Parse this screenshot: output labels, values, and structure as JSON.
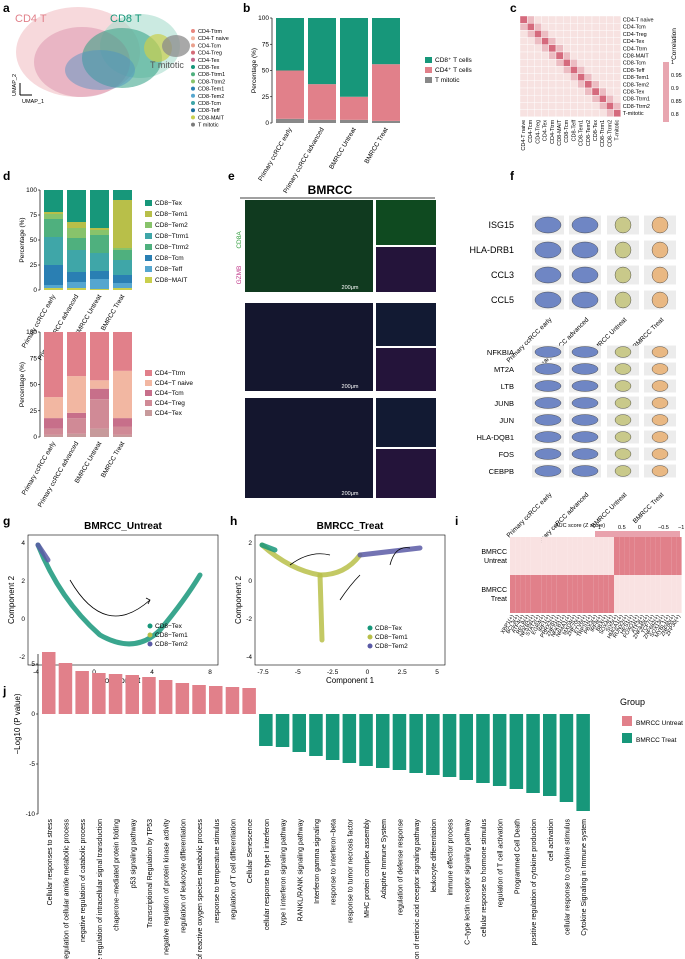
{
  "panel_letters": [
    "a",
    "b",
    "c",
    "d",
    "e",
    "f",
    "g",
    "h",
    "i",
    "j"
  ],
  "panel_a": {
    "cluster_labels": [
      "CD4 T",
      "CD8 T",
      "T mitotic"
    ],
    "axis_labels": [
      "UMAP_1",
      "UMAP_2"
    ],
    "legend": [
      {
        "name": "CD4-Ttrm",
        "color": "#e8877f"
      },
      {
        "name": "CD4-T naive",
        "color": "#f2b7a2"
      },
      {
        "name": "CD4-Tcm",
        "color": "#eaa08d"
      },
      {
        "name": "CD4-Treg",
        "color": "#d46b78"
      },
      {
        "name": "CD4-Tex",
        "color": "#c2688d"
      },
      {
        "name": "CD8-Tex",
        "color": "#17977a"
      },
      {
        "name": "CD8-Ttrm1",
        "color": "#4fb07e"
      },
      {
        "name": "CD8-Ttrm2",
        "color": "#88c36b"
      },
      {
        "name": "CD8-Tem1",
        "color": "#2a7fb3"
      },
      {
        "name": "CD8-Tem2",
        "color": "#55a6cf"
      },
      {
        "name": "CD8-Tcm",
        "color": "#3fa6a8"
      },
      {
        "name": "CD8-Teff",
        "color": "#1c6f9e"
      },
      {
        "name": "CD8-MAIT",
        "color": "#c9cf4d"
      },
      {
        "name": "T mitotic",
        "color": "#7b7b7b"
      }
    ]
  },
  "chart_data": [
    {
      "id": "b",
      "type": "bar",
      "stacked": true,
      "categories": [
        "Primary ccRCC early",
        "Primary ccRCC advanced",
        "BMRCC Untreat",
        "BMRCC Treat"
      ],
      "ylabel": "Percentage (%)",
      "ylim": [
        0,
        100
      ],
      "yticks": [
        0,
        25,
        50,
        75,
        100
      ],
      "series": [
        {
          "name": "T mitotic",
          "color": "#888888",
          "values": [
            4,
            3,
            3,
            2
          ]
        },
        {
          "name": "CD4⁺ T cells",
          "color": "#e1808a",
          "values": [
            46,
            34,
            22,
            54
          ]
        },
        {
          "name": "CD8⁺ T cells",
          "color": "#17977a",
          "values": [
            50,
            63,
            75,
            44
          ]
        }
      ],
      "legend": [
        "CD8⁺ T cells",
        "CD4⁺ T cells",
        "T mitotic"
      ]
    },
    {
      "id": "c",
      "type": "heatmap",
      "rows": [
        "CD4-T naive",
        "CD4-Tcm",
        "CD4-Treg",
        "CD4-Tex",
        "CD4-Ttrm",
        "CD8-MAIT",
        "CD8-Tcm",
        "CD8-Teff",
        "CD8-Tem1",
        "CD8-Tem2",
        "CD8-Tex",
        "CD8-Ttrm1",
        "CD8-Ttrm2",
        "T-mitotic"
      ],
      "legend_title": "Correlation",
      "scale_ticks": [
        "1",
        "0.95",
        "0.9",
        "0.85",
        "0.8"
      ],
      "diagonal": 1.0,
      "off_diagonal_range": [
        0.8,
        0.95
      ]
    },
    {
      "id": "d_top",
      "type": "bar",
      "stacked": true,
      "categories": [
        "Primary ccRCC early",
        "Primary ccRCC advanced",
        "BMRCC Untreat",
        "BMRCC Treat"
      ],
      "ylabel": "Percentage (%)",
      "ylim": [
        0,
        100
      ],
      "yticks": [
        0,
        25,
        50,
        75,
        100
      ],
      "series": [
        {
          "name": "CD8−MAIT",
          "color": "#c9cf4d",
          "values": [
            2,
            2,
            1,
            2
          ]
        },
        {
          "name": "CD8−Teff",
          "color": "#55a6cf",
          "values": [
            3,
            6,
            10,
            5
          ]
        },
        {
          "name": "CD8−Tcm",
          "color": "#2a7fb3",
          "values": [
            20,
            10,
            8,
            8
          ]
        },
        {
          "name": "CD8−Ttrm1",
          "color": "#3fa6a8",
          "values": [
            28,
            22,
            18,
            15
          ]
        },
        {
          "name": "CD8−Ttrm2",
          "color": "#4fb07e",
          "values": [
            18,
            12,
            18,
            10
          ]
        },
        {
          "name": "CD8−Tem2",
          "color": "#88c36b",
          "values": [
            5,
            10,
            5,
            2
          ]
        },
        {
          "name": "CD8−Tem1",
          "color": "#b8bf49",
          "values": [
            2,
            6,
            2,
            48
          ]
        },
        {
          "name": "CD8−Tex",
          "color": "#17977a",
          "values": [
            22,
            32,
            38,
            10
          ]
        }
      ],
      "legend": [
        "CD8−Tex",
        "CD8−Tem1",
        "CD8−Tem2",
        "CD8−Ttrm1",
        "CD8−Ttrm2",
        "CD8−Tcm",
        "CD8−Teff",
        "CD8−MAIT"
      ]
    },
    {
      "id": "d_bottom",
      "type": "bar",
      "stacked": true,
      "categories": [
        "Primary ccRCC early",
        "Primary ccRCC advanced",
        "BMRCC Untreat",
        "BMRCC Treat"
      ],
      "ylabel": "Percentage (%)",
      "ylim": [
        0,
        100
      ],
      "yticks": [
        0,
        25,
        50,
        75,
        100
      ],
      "series": [
        {
          "name": "CD4−Tex",
          "color": "#c79a9b",
          "values": [
            2,
            3,
            8,
            2
          ]
        },
        {
          "name": "CD4−Treg",
          "color": "#d08a96",
          "values": [
            6,
            15,
            28,
            8
          ]
        },
        {
          "name": "CD4−Tcm",
          "color": "#c76f8a",
          "values": [
            10,
            5,
            10,
            8
          ]
        },
        {
          "name": "CD4−T naive",
          "color": "#f2b7a2",
          "values": [
            20,
            35,
            8,
            45
          ]
        },
        {
          "name": "CD4−Ttrm",
          "color": "#e1808a",
          "values": [
            62,
            42,
            46,
            37
          ]
        }
      ],
      "legend": [
        "CD4−Ttrm",
        "CD4−T naive",
        "CD4−Tcm",
        "CD4−Treg",
        "CD4−Tex"
      ]
    },
    {
      "id": "j",
      "type": "bar",
      "ylabel": "−Log10 (P value)",
      "ylim": [
        -10,
        7
      ],
      "yticks": [
        5,
        0,
        -5,
        -10
      ],
      "legend_title": "Group",
      "series": [
        {
          "name": "BMRCC Untreat",
          "color": "#e1808a"
        },
        {
          "name": "BMRCC Treat",
          "color": "#17977a"
        }
      ],
      "categories": [
        "Cellular responses to stress",
        "regulation of cellular amide metabolic process",
        "negative regulation of catabolic process",
        "negative regulation of intracellular signal transduction",
        "chaperone−mediated protein folding",
        "p53 signaling pathway",
        "Transcriptional Regulation by TP53",
        "negative regulation of protein kinase activity",
        "regulation of leukocyte differentiation",
        "regulation of reactive oxygen species metabolic process",
        "response to temperature stimulus",
        "regulation of T cell differentiation",
        "Cellular Senescence",
        "cellular response to type I interferon",
        "type I interferon signaling pathway",
        "RANKL/RANK signaling pathway",
        "Interferon gamma signaling",
        "response to interferon−beta",
        "response to tumor necrosis factor",
        "MHC protein complex assembly",
        "Adaptive Immune System",
        "regulation of defense response",
        "regulation of retinoic acid receptor signaling pathway",
        "leukocyte differentiation",
        "immune effector process",
        "C−type lectin receptor signaling pathway",
        "cellular response to hormone stimulus",
        "regulation of T cell activation",
        "Programmed Cell Death",
        "positive regulation of cytokine production",
        "cell activation",
        "cellular response to cytokine stimulus",
        "Cytokine Signaling in Immune system"
      ],
      "groups": [
        "BMRCC Untreat",
        "BMRCC Untreat",
        "BMRCC Untreat",
        "BMRCC Untreat",
        "BMRCC Untreat",
        "BMRCC Untreat",
        "BMRCC Untreat",
        "BMRCC Untreat",
        "BMRCC Untreat",
        "BMRCC Untreat",
        "BMRCC Untreat",
        "BMRCC Untreat",
        "BMRCC Untreat",
        "BMRCC Treat",
        "BMRCC Treat",
        "BMRCC Treat",
        "BMRCC Treat",
        "BMRCC Treat",
        "BMRCC Treat",
        "BMRCC Treat",
        "BMRCC Treat",
        "BMRCC Treat",
        "BMRCC Treat",
        "BMRCC Treat",
        "BMRCC Treat",
        "BMRCC Treat",
        "BMRCC Treat",
        "BMRCC Treat",
        "BMRCC Treat",
        "BMRCC Treat",
        "BMRCC Treat",
        "BMRCC Treat",
        "BMRCC Treat"
      ],
      "values": [
        6.2,
        5.1,
        4.3,
        4.1,
        4.0,
        3.9,
        3.7,
        3.4,
        3.1,
        2.9,
        2.8,
        2.7,
        2.6,
        -3.2,
        -3.3,
        -3.8,
        -4.2,
        -4.6,
        -4.9,
        -5.2,
        -5.4,
        -5.6,
        -5.9,
        -6.1,
        -6.3,
        -6.6,
        -6.9,
        -7.2,
        -7.5,
        -7.9,
        -8.2,
        -8.8,
        -9.7
      ]
    },
    {
      "id": "g",
      "type": "scatter",
      "title": "BMRCC_Untreat",
      "xlabel": "Component 1",
      "ylabel": "Component 2",
      "xticks": [
        -4,
        0,
        4,
        8
      ],
      "yticks": [
        -2,
        0,
        2,
        4
      ],
      "legend": [
        {
          "name": "CD8−Tex",
          "color": "#17977a"
        },
        {
          "name": "CD8−Tem1",
          "color": "#b8bf49"
        },
        {
          "name": "CD8−Tem2",
          "color": "#5a5aa6"
        }
      ]
    },
    {
      "id": "h",
      "type": "scatter",
      "title": "BMRCC_Treat",
      "xlabel": "Component 1",
      "ylabel": "Component 2",
      "xticks": [
        -7.5,
        -5.0,
        -2.5,
        0.0,
        2.5,
        5.0
      ],
      "yticks": [
        -4,
        -2,
        0,
        2
      ],
      "legend": [
        {
          "name": "CD8−Tex",
          "color": "#17977a"
        },
        {
          "name": "CD8−Tem1",
          "color": "#b8bf49"
        },
        {
          "name": "CD8−Tem2",
          "color": "#5a5aa6"
        }
      ]
    }
  ],
  "panel_e": {
    "title": "BMRCC",
    "stain1": "CD8A",
    "stain2": "GZMB",
    "scale": "200μm"
  },
  "panel_f": {
    "top_genes": [
      "ISG15",
      "HLA-DRB1",
      "CCL3",
      "CCL5"
    ],
    "bottom_genes": [
      "NFKBIA",
      "MT2A",
      "LTB",
      "JUNB",
      "JUN",
      "HLA-DQB1",
      "FOS",
      "CEBPB"
    ],
    "groups": [
      "Primary ccRCC early",
      "Primary ccRCC advanced",
      "BMRCC Untreat",
      "BMRCC Treat"
    ],
    "colors": [
      "#6f86c4",
      "#6f86c4",
      "#c9c98a",
      "#e9b883"
    ]
  },
  "panel_i": {
    "legend_title": "AUC score (Z score)",
    "scale_ticks": [
      "1",
      "0.5",
      "0",
      "−0.5",
      "−1"
    ],
    "rows": [
      "BMRCC Untreat",
      "BMRCC Treat"
    ],
    "tfs": [
      "XBP1(+)",
      "BCL3(+)",
      "ATF4(+)",
      "RELB(+)",
      "NFKB2(+)",
      "STAT2(+)",
      "EGR4(+)",
      "IRF1(+)",
      "PRRX2(+)",
      "ZNF91(+)",
      "NFKB1(+)",
      "NR4A1(+)",
      "MXD4(+)",
      "ZNF70(+)",
      "ETV6(+)",
      "TRPS1(+)",
      "PBX3(+)",
      "IRF8(+)",
      "BBX(+)",
      "SOX4(+)",
      "SIX5(+)",
      "HMGA1(+)",
      "RUNX2(+)",
      "HES1(+)",
      "FOXO1(+)",
      "ATF3(+)",
      "ZNF845(+)",
      "TCF7(+)",
      "ZNF682(+)",
      "SOX13(+)",
      "MYBL1(+)",
      "ZNF80(+)",
      "ZFP30(+)"
    ]
  }
}
